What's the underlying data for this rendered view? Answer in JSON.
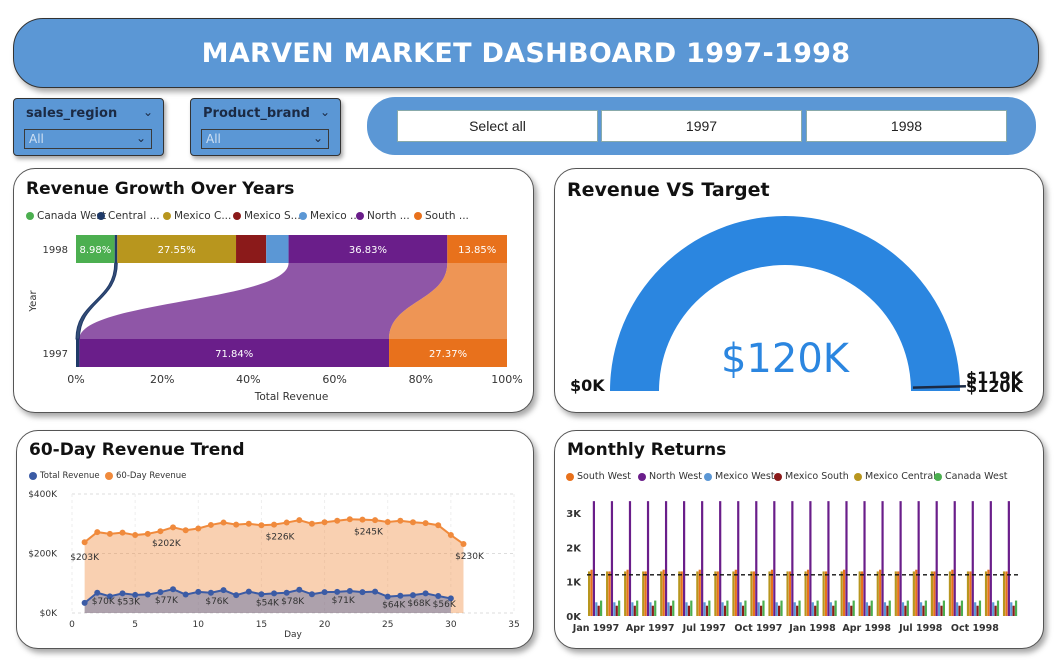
{
  "header": {
    "title": "MARVEN MARKET DASHBOARD 1997-1998"
  },
  "slicers": [
    {
      "label": "sales_region",
      "value": "All"
    },
    {
      "label": "Product_brand",
      "value": "All"
    }
  ],
  "year_buttons": [
    "Select all",
    "1997",
    "1998"
  ],
  "colors": {
    "canada_west": "#4caf50",
    "central": "#1f3a68",
    "mexico_central": "#b8961e",
    "mexico_south": "#8b1a1a",
    "mexico_west": "#5b97d5",
    "north_west": "#6a1e8a",
    "south_west": "#e8711c",
    "gauge": "#2b86e0"
  },
  "growth": {
    "title": "Revenue Growth Over Years",
    "legend": [
      "Canada West",
      "Central ...",
      "Mexico C...",
      "Mexico S...",
      "Mexico ...",
      "North ...",
      "South ..."
    ],
    "ylabel": "Year",
    "xlabel": "Total Revenue",
    "xticks": [
      "0%",
      "20%",
      "40%",
      "60%",
      "80%",
      "100%"
    ],
    "chart_data": {
      "type": "bar",
      "orientation": "horizontal-100%-stacked-ribbon",
      "categories": [
        "1998",
        "1997"
      ],
      "series": [
        {
          "name": "Canada West",
          "values": [
            8.98,
            0
          ],
          "labels": [
            "8.98%",
            ""
          ]
        },
        {
          "name": "Central ...",
          "values": [
            0.6,
            0.79
          ],
          "labels": [
            "",
            ""
          ]
        },
        {
          "name": "Mexico C...",
          "values": [
            27.55,
            0
          ],
          "labels": [
            "27.55%",
            ""
          ]
        },
        {
          "name": "Mexico S...",
          "values": [
            7.0,
            0
          ],
          "labels": [
            "",
            ""
          ]
        },
        {
          "name": "Mexico ...",
          "values": [
            5.19,
            0
          ],
          "labels": [
            "",
            ""
          ]
        },
        {
          "name": "North ...",
          "values": [
            36.83,
            71.84
          ],
          "labels": [
            "36.83%",
            "71.84%"
          ]
        },
        {
          "name": "South ...",
          "values": [
            13.85,
            27.37
          ],
          "labels": [
            "13.85%",
            "27.37%"
          ]
        }
      ],
      "xlim": [
        0,
        100
      ]
    }
  },
  "gauge": {
    "title": "Revenue VS Target",
    "value_label": "$120K",
    "min_label": "$0K",
    "target_label": "$119K",
    "max_label": "$120K",
    "chart_data": {
      "type": "gauge",
      "value": 120,
      "target": 119,
      "min": 0,
      "max": 120,
      "unit": "$K"
    }
  },
  "trend": {
    "title": "60-Day Revenue Trend",
    "legend": [
      "Total Revenue",
      "60-Day Revenue"
    ],
    "yticks": [
      "$400K",
      "$200K",
      "$0K"
    ],
    "xticks": [
      "0",
      "5",
      "10",
      "15",
      "20",
      "25",
      "30",
      "35"
    ],
    "xlabel": "Day",
    "chart_data": {
      "type": "area",
      "x": [
        1,
        2,
        3,
        4,
        5,
        6,
        7,
        8,
        9,
        10,
        11,
        12,
        13,
        14,
        15,
        16,
        17,
        18,
        19,
        20,
        21,
        22,
        23,
        24,
        25,
        26,
        27,
        28,
        29,
        30,
        31
      ],
      "ylim": [
        0,
        400
      ],
      "xlim": [
        0,
        35
      ],
      "series": [
        {
          "name": "60-Day Revenue",
          "values": [
            238,
            272,
            266,
            270,
            262,
            266,
            275,
            288,
            278,
            284,
            296,
            304,
            297,
            300,
            295,
            297,
            304,
            312,
            300,
            305,
            310,
            315,
            314,
            312,
            306,
            310,
            305,
            302,
            295,
            262,
            232
          ]
        },
        {
          "name": "Total Revenue",
          "values": [
            34,
            68,
            56,
            66,
            61,
            62,
            70,
            80,
            62,
            71,
            68,
            77,
            60,
            72,
            63,
            66,
            68,
            78,
            63,
            70,
            71,
            74,
            70,
            72,
            55,
            58,
            60,
            66,
            57,
            49,
            0
          ]
        }
      ],
      "data_labels": [
        {
          "x": 1,
          "text": "$203K"
        },
        {
          "x": 7,
          "text": "$202K"
        },
        {
          "x": 16,
          "text": "$226K"
        },
        {
          "x": 23,
          "text": "$245K"
        },
        {
          "x": 31,
          "text": "$230K"
        },
        {
          "x": 2,
          "text": "$70K"
        },
        {
          "x": 4,
          "text": "$53K"
        },
        {
          "x": 7,
          "text": "$77K"
        },
        {
          "x": 11,
          "text": "$76K"
        },
        {
          "x": 15,
          "text": "$54K"
        },
        {
          "x": 17,
          "text": "$78K"
        },
        {
          "x": 21,
          "text": "$71K"
        },
        {
          "x": 25,
          "text": "$64K"
        },
        {
          "x": 27,
          "text": "$68K"
        },
        {
          "x": 29,
          "text": "$56K"
        }
      ]
    }
  },
  "returns": {
    "title": "Monthly Returns",
    "legend": [
      "South West",
      "North West",
      "Mexico West",
      "Mexico South",
      "Mexico Central",
      "Canada West"
    ],
    "yticks": [
      "3K",
      "2K",
      "1K",
      "0K"
    ],
    "xticks": [
      "Jan 1997",
      "Apr 1997",
      "Jul 1997",
      "Oct 1997",
      "Jan 1998",
      "Apr 1998",
      "Jul 1998",
      "Oct 1998"
    ],
    "chart_data": {
      "type": "bar",
      "categories": [
        "Jan 1997",
        "Feb 1997",
        "Mar 1997",
        "Apr 1997",
        "May 1997",
        "Jun 1997",
        "Jul 1997",
        "Aug 1997",
        "Sep 1997",
        "Oct 1997",
        "Nov 1997",
        "Dec 1997",
        "Jan 1998",
        "Feb 1998",
        "Mar 1998",
        "Apr 1998",
        "May 1998",
        "Jun 1998",
        "Jul 1998",
        "Aug 1998",
        "Sep 1998",
        "Oct 1998",
        "Nov 1998",
        "Dec 1998"
      ],
      "series": [
        {
          "name": "South West",
          "values": [
            1.35,
            1.3,
            1.35,
            1.3,
            1.35,
            1.3,
            1.35,
            1.3,
            1.35,
            1.3,
            1.35,
            1.3,
            1.35,
            1.3,
            1.35,
            1.3,
            1.35,
            1.3,
            1.35,
            1.3,
            1.35,
            1.3,
            1.35,
            1.3
          ]
        },
        {
          "name": "North West",
          "values": [
            3.35,
            3.35,
            3.35,
            3.35,
            3.35,
            3.35,
            3.35,
            3.35,
            3.35,
            3.35,
            3.35,
            3.35,
            3.35,
            3.35,
            3.35,
            3.35,
            3.35,
            3.35,
            3.35,
            3.35,
            3.35,
            3.35,
            3.35,
            3.35
          ]
        },
        {
          "name": "Mexico West",
          "values": [
            0.4,
            0.4,
            0.4,
            0.4,
            0.4,
            0.4,
            0.4,
            0.4,
            0.4,
            0.4,
            0.4,
            0.4,
            0.4,
            0.4,
            0.4,
            0.4,
            0.4,
            0.4,
            0.4,
            0.4,
            0.4,
            0.4,
            0.4,
            0.4
          ]
        },
        {
          "name": "Mexico South",
          "values": [
            0.3,
            0.3,
            0.3,
            0.3,
            0.3,
            0.3,
            0.3,
            0.3,
            0.3,
            0.3,
            0.3,
            0.3,
            0.3,
            0.3,
            0.3,
            0.3,
            0.3,
            0.3,
            0.3,
            0.3,
            0.3,
            0.3,
            0.3,
            0.3
          ]
        },
        {
          "name": "Mexico Central",
          "values": [
            1.3,
            1.3,
            1.3,
            1.3,
            1.3,
            1.3,
            1.3,
            1.3,
            1.3,
            1.3,
            1.3,
            1.3,
            1.3,
            1.3,
            1.3,
            1.3,
            1.3,
            1.3,
            1.3,
            1.3,
            1.3,
            1.3,
            1.3,
            1.3
          ]
        },
        {
          "name": "Canada West",
          "values": [
            0.45,
            0.45,
            0.45,
            0.45,
            0.45,
            0.45,
            0.45,
            0.45,
            0.45,
            0.45,
            0.45,
            0.45,
            0.45,
            0.45,
            0.45,
            0.45,
            0.45,
            0.45,
            0.45,
            0.45,
            0.45,
            0.45,
            0.45,
            0.45
          ]
        }
      ],
      "reference_line": 1.2,
      "ylim": [
        0,
        3.5
      ]
    }
  }
}
